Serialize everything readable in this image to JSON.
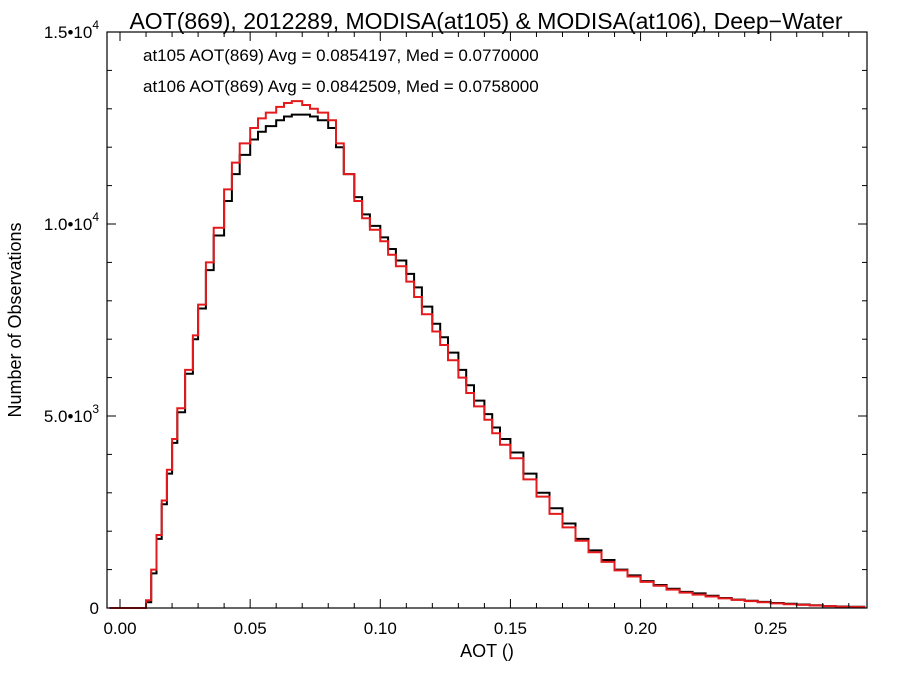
{
  "chart_data": {
    "type": "line",
    "title": "AOT(869), 2012289, MODISA(at105) & MODISA(at106), Deep−Water",
    "xlabel": "AOT ()",
    "ylabel": "Number of Observations",
    "xlim": [
      -0.005,
      0.287
    ],
    "ylim": [
      0,
      15000
    ],
    "x_ticks": [
      {
        "value": 0.0,
        "label": "0.00"
      },
      {
        "value": 0.05,
        "label": "0.05"
      },
      {
        "value": 0.1,
        "label": "0.10"
      },
      {
        "value": 0.15,
        "label": "0.15"
      },
      {
        "value": 0.2,
        "label": "0.20"
      },
      {
        "value": 0.25,
        "label": "0.25"
      }
    ],
    "y_ticks": [
      {
        "value": 0,
        "mantissa": "0",
        "exponent": ""
      },
      {
        "value": 5000,
        "mantissa": "5.0•10",
        "exponent": "3"
      },
      {
        "value": 10000,
        "mantissa": "1.0•10",
        "exponent": "4"
      },
      {
        "value": 15000,
        "mantissa": "1.5•10",
        "exponent": "4"
      }
    ],
    "grid": false,
    "legend": [
      {
        "text": "at105 AOT(869) Avg = 0.0854197, Med = 0.0770000",
        "color": "#000000"
      },
      {
        "text": "at106 AOT(869) Avg = 0.0842509, Med = 0.0758000",
        "color": "#e41a1c"
      }
    ],
    "series": [
      {
        "color": "#000000",
        "x": [
          -0.004,
          0.0,
          0.005,
          0.008,
          0.01,
          0.012,
          0.014,
          0.016,
          0.018,
          0.02,
          0.022,
          0.025,
          0.028,
          0.03,
          0.033,
          0.036,
          0.04,
          0.043,
          0.046,
          0.05,
          0.053,
          0.056,
          0.06,
          0.063,
          0.066,
          0.07,
          0.073,
          0.076,
          0.08,
          0.083,
          0.086,
          0.09,
          0.093,
          0.096,
          0.1,
          0.103,
          0.106,
          0.11,
          0.113,
          0.116,
          0.12,
          0.123,
          0.126,
          0.13,
          0.133,
          0.136,
          0.14,
          0.143,
          0.146,
          0.15,
          0.155,
          0.16,
          0.165,
          0.17,
          0.175,
          0.18,
          0.185,
          0.19,
          0.195,
          0.2,
          0.205,
          0.21,
          0.215,
          0.22,
          0.225,
          0.23,
          0.235,
          0.24,
          0.245,
          0.25,
          0.255,
          0.26,
          0.265,
          0.27,
          0.275,
          0.28,
          0.286
        ],
        "y": [
          0,
          0,
          0,
          0,
          150,
          900,
          1800,
          2700,
          3500,
          4300,
          5100,
          6100,
          7000,
          7800,
          8800,
          9700,
          10600,
          11300,
          11800,
          12200,
          12400,
          12550,
          12700,
          12800,
          12850,
          12850,
          12800,
          12700,
          12500,
          12000,
          11300,
          10700,
          10250,
          9950,
          9650,
          9350,
          9050,
          8700,
          8350,
          7850,
          7400,
          7050,
          6650,
          6200,
          5800,
          5400,
          5050,
          4700,
          4400,
          4050,
          3500,
          3000,
          2600,
          2200,
          1800,
          1500,
          1250,
          1000,
          850,
          700,
          600,
          500,
          420,
          380,
          320,
          260,
          220,
          190,
          160,
          130,
          110,
          90,
          70,
          50,
          40,
          30,
          20
        ]
      },
      {
        "color": "#e41a1c",
        "x": [
          -0.004,
          0.0,
          0.005,
          0.008,
          0.01,
          0.012,
          0.014,
          0.016,
          0.018,
          0.02,
          0.022,
          0.025,
          0.028,
          0.03,
          0.033,
          0.036,
          0.04,
          0.043,
          0.046,
          0.05,
          0.053,
          0.056,
          0.06,
          0.063,
          0.066,
          0.07,
          0.073,
          0.076,
          0.08,
          0.083,
          0.086,
          0.09,
          0.093,
          0.096,
          0.1,
          0.103,
          0.106,
          0.11,
          0.113,
          0.116,
          0.12,
          0.123,
          0.126,
          0.13,
          0.133,
          0.136,
          0.14,
          0.143,
          0.146,
          0.15,
          0.155,
          0.16,
          0.165,
          0.17,
          0.175,
          0.18,
          0.185,
          0.19,
          0.195,
          0.2,
          0.205,
          0.21,
          0.215,
          0.22,
          0.225,
          0.23,
          0.235,
          0.24,
          0.245,
          0.25,
          0.255,
          0.26,
          0.265,
          0.27,
          0.275,
          0.28,
          0.286
        ],
        "y": [
          0,
          0,
          0,
          0,
          200,
          1000,
          1900,
          2800,
          3600,
          4400,
          5200,
          6200,
          7100,
          7900,
          9000,
          9900,
          10900,
          11600,
          12100,
          12500,
          12750,
          12900,
          13050,
          13150,
          13200,
          13100,
          13000,
          12900,
          12700,
          12100,
          11300,
          10600,
          10150,
          9850,
          9550,
          9200,
          8900,
          8500,
          8100,
          7650,
          7200,
          6850,
          6450,
          6000,
          5600,
          5250,
          4900,
          4550,
          4250,
          3900,
          3350,
          2900,
          2450,
          2100,
          1750,
          1450,
          1200,
          980,
          820,
          680,
          580,
          480,
          400,
          350,
          300,
          250,
          210,
          180,
          150,
          120,
          100,
          80,
          65,
          50,
          35,
          25,
          15
        ]
      }
    ]
  }
}
